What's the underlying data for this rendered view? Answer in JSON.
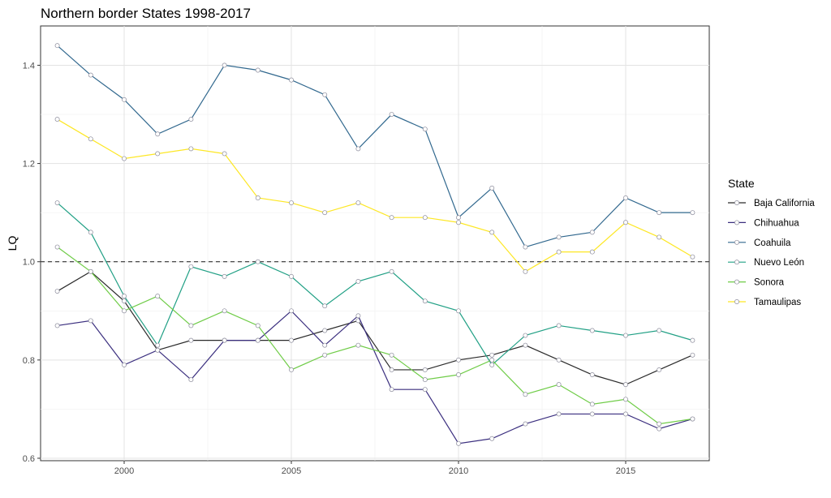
{
  "chart_data": {
    "type": "line",
    "title": "Northern border States 1998-2017",
    "xlabel": "",
    "ylabel": "LQ",
    "xlim": [
      1997.5,
      2017.5
    ],
    "ylim": [
      0.595,
      1.48
    ],
    "x_ticks": [
      2000,
      2005,
      2010,
      2015
    ],
    "y_ticks": [
      0.6,
      0.8,
      1.0,
      1.2,
      1.4
    ],
    "y_tick_labels": [
      "0.6",
      "0.8",
      "1.0",
      "1.2",
      "1.4"
    ],
    "x_tick_labels": [
      "2000",
      "2005",
      "2010",
      "2015"
    ],
    "reference_line": 1.0,
    "grid": true,
    "legend_title": "State",
    "legend_position": "right",
    "x": [
      1998,
      1999,
      2000,
      2001,
      2002,
      2003,
      2004,
      2005,
      2006,
      2007,
      2008,
      2009,
      2010,
      2011,
      2012,
      2013,
      2014,
      2015,
      2016,
      2017
    ],
    "series": [
      {
        "name": "Baja California",
        "color": "#2b2b2b",
        "values": [
          0.94,
          0.98,
          0.92,
          0.82,
          0.84,
          0.84,
          0.84,
          0.84,
          0.86,
          0.88,
          0.78,
          0.78,
          0.8,
          0.81,
          0.83,
          0.8,
          0.77,
          0.75,
          0.78,
          0.81
        ]
      },
      {
        "name": "Chihuahua",
        "color": "#3b2f7f",
        "values": [
          0.87,
          0.88,
          0.79,
          0.82,
          0.76,
          0.84,
          0.84,
          0.9,
          0.83,
          0.89,
          0.74,
          0.74,
          0.63,
          0.64,
          0.67,
          0.69,
          0.69,
          0.69,
          0.66,
          0.68
        ]
      },
      {
        "name": "Coahuila",
        "color": "#31688e",
        "values": [
          1.44,
          1.38,
          1.33,
          1.26,
          1.29,
          1.4,
          1.39,
          1.37,
          1.34,
          1.23,
          1.3,
          1.27,
          1.09,
          1.15,
          1.03,
          1.05,
          1.06,
          1.13,
          1.1,
          1.1
        ]
      },
      {
        "name": "Nuevo León",
        "color": "#21a085",
        "values": [
          1.12,
          1.06,
          0.93,
          0.83,
          0.99,
          0.97,
          1.0,
          0.97,
          0.91,
          0.96,
          0.98,
          0.92,
          0.9,
          0.79,
          0.85,
          0.87,
          0.86,
          0.85,
          0.86,
          0.84
        ]
      },
      {
        "name": "Sonora",
        "color": "#6fcc47",
        "values": [
          1.03,
          0.98,
          0.9,
          0.93,
          0.87,
          0.9,
          0.87,
          0.78,
          0.81,
          0.83,
          0.81,
          0.76,
          0.77,
          0.8,
          0.73,
          0.75,
          0.71,
          0.72,
          0.67,
          0.68
        ]
      },
      {
        "name": "Tamaulipas",
        "color": "#fde725",
        "values": [
          1.29,
          1.25,
          1.21,
          1.22,
          1.23,
          1.22,
          1.13,
          1.12,
          1.1,
          1.12,
          1.09,
          1.09,
          1.08,
          1.06,
          0.98,
          1.02,
          1.02,
          1.08,
          1.05,
          1.01
        ]
      }
    ]
  }
}
